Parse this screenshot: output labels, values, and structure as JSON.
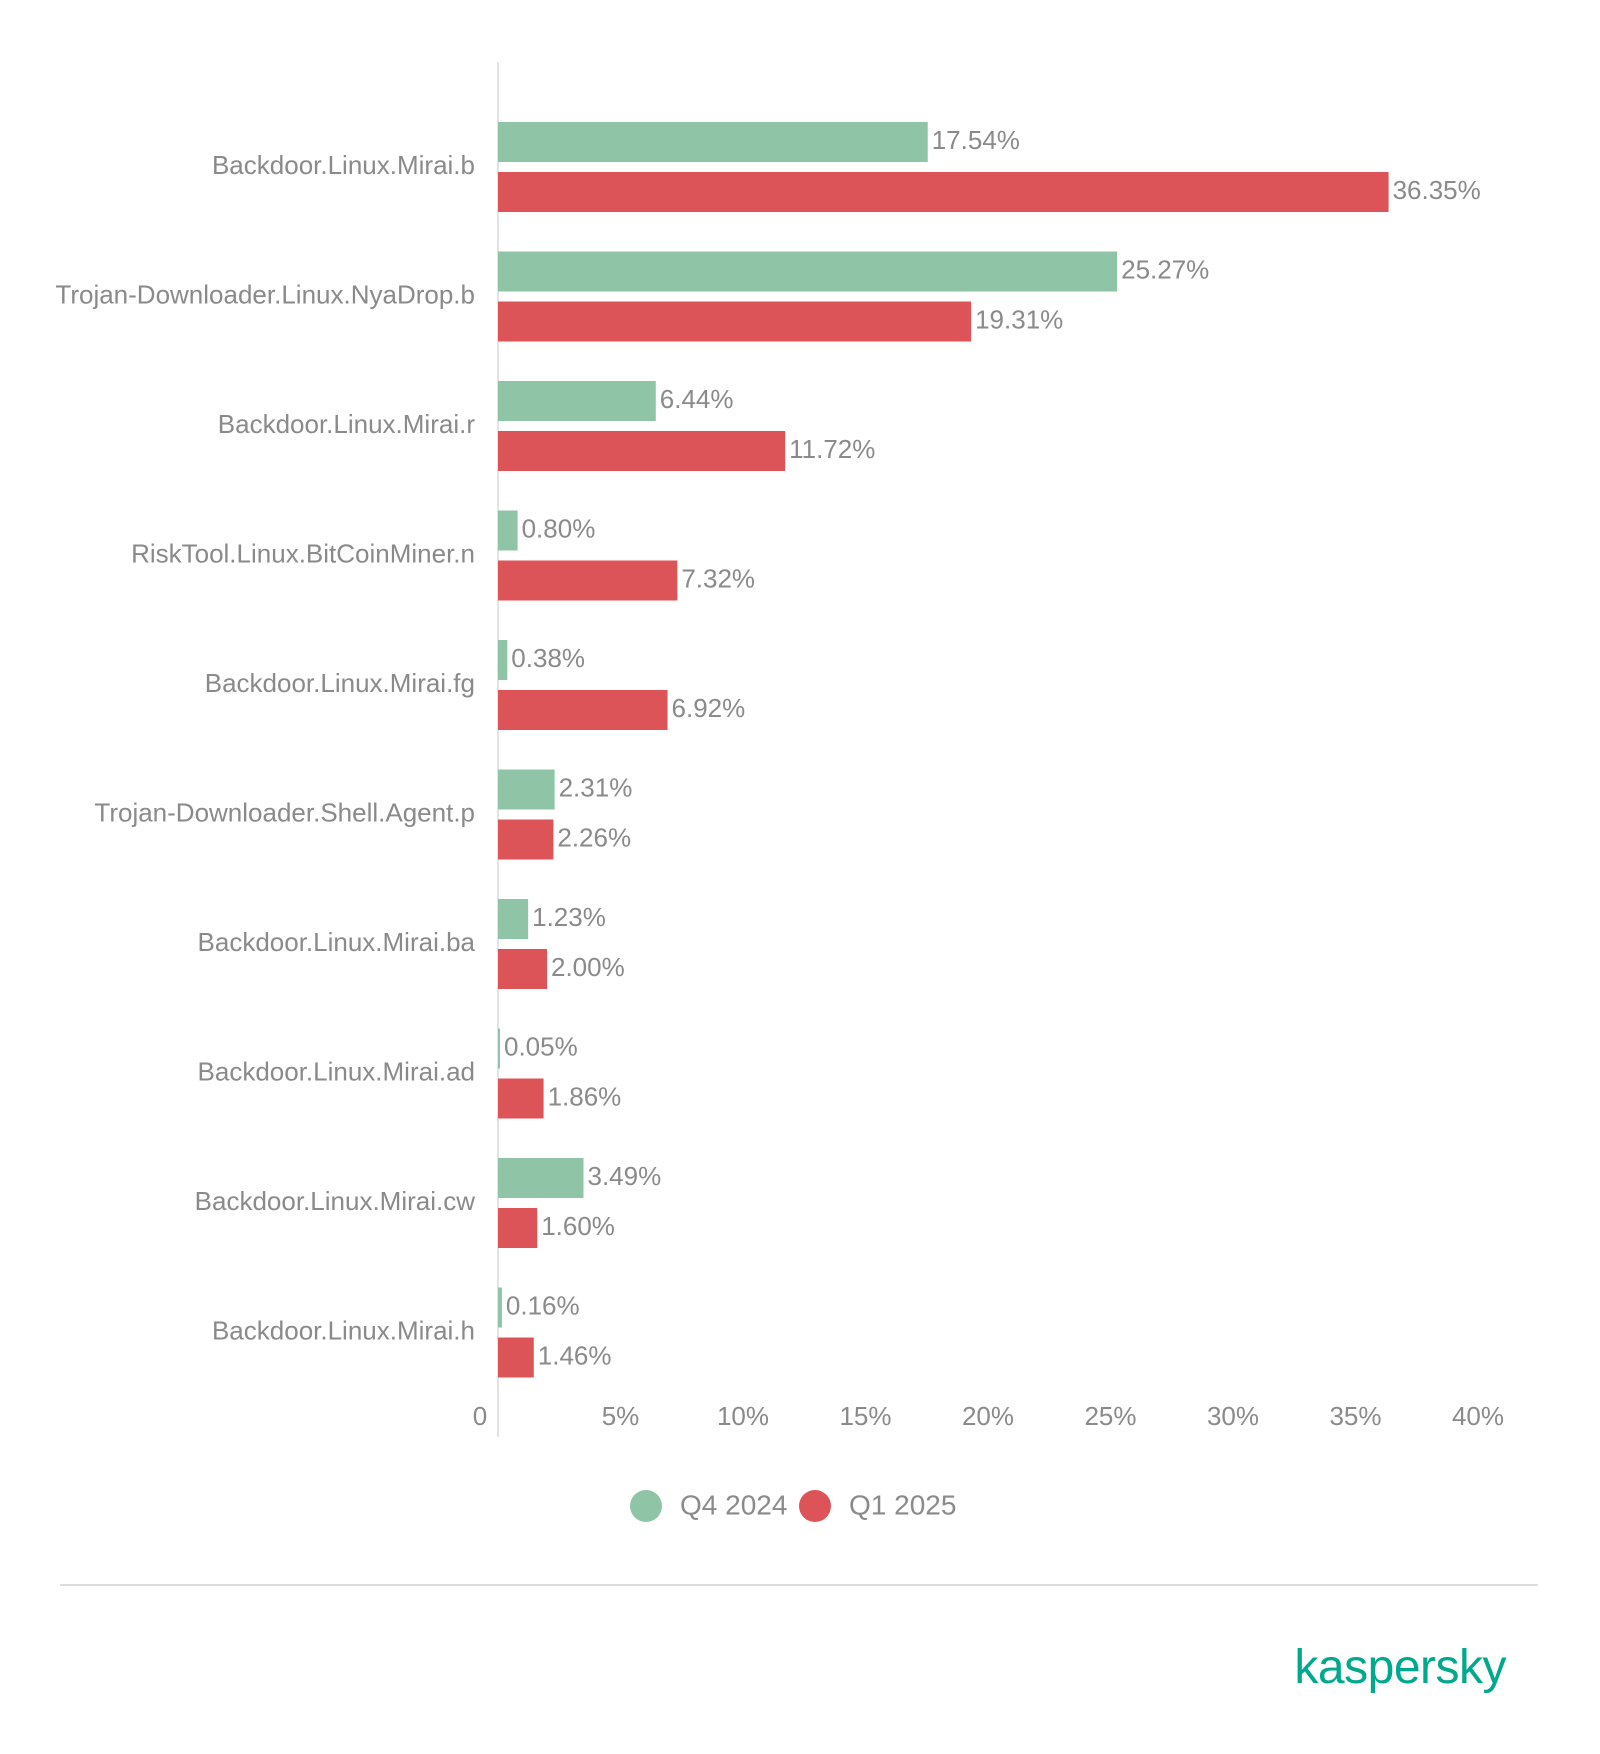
{
  "chart_data": {
    "type": "bar",
    "orientation": "horizontal",
    "categories": [
      "Backdoor.Linux.Mirai.b",
      "Trojan-Downloader.Linux.NyaDrop.b",
      "Backdoor.Linux.Mirai.r",
      "RiskTool.Linux.BitCoinMiner.n",
      "Backdoor.Linux.Mirai.fg",
      "Trojan-Downloader.Shell.Agent.p",
      "Backdoor.Linux.Mirai.ba",
      "Backdoor.Linux.Mirai.ad",
      "Backdoor.Linux.Mirai.cw",
      "Backdoor.Linux.Mirai.h"
    ],
    "series": [
      {
        "name": "Q4 2024",
        "color": "#8fc4a7",
        "values": [
          17.54,
          25.27,
          6.44,
          0.8,
          0.38,
          2.31,
          1.23,
          0.05,
          3.49,
          0.16
        ],
        "labels": [
          "17.54%",
          "25.27%",
          "6.44%",
          "0.80%",
          "0.38%",
          "2.31%",
          "1.23%",
          "0.05%",
          "3.49%",
          "0.16%"
        ]
      },
      {
        "name": "Q1 2025",
        "color": "#dc5358",
        "values": [
          36.35,
          19.31,
          11.72,
          7.32,
          6.92,
          2.26,
          2.0,
          1.86,
          1.6,
          1.46
        ],
        "labels": [
          "36.35%",
          "19.31%",
          "11.72%",
          "7.32%",
          "6.92%",
          "2.26%",
          "2.00%",
          "1.86%",
          "1.60%",
          "1.46%"
        ]
      }
    ],
    "xlim": [
      0,
      40
    ],
    "xticks": [
      0,
      5,
      10,
      15,
      20,
      25,
      30,
      35,
      40
    ],
    "xtick_labels": [
      "0",
      "5%",
      "10%",
      "15%",
      "20%",
      "25%",
      "30%",
      "35%",
      "40%"
    ],
    "legend_position": "bottom-center",
    "grid": false
  },
  "brand": {
    "logo_text": "kaspersky",
    "color": "#00a88e"
  }
}
